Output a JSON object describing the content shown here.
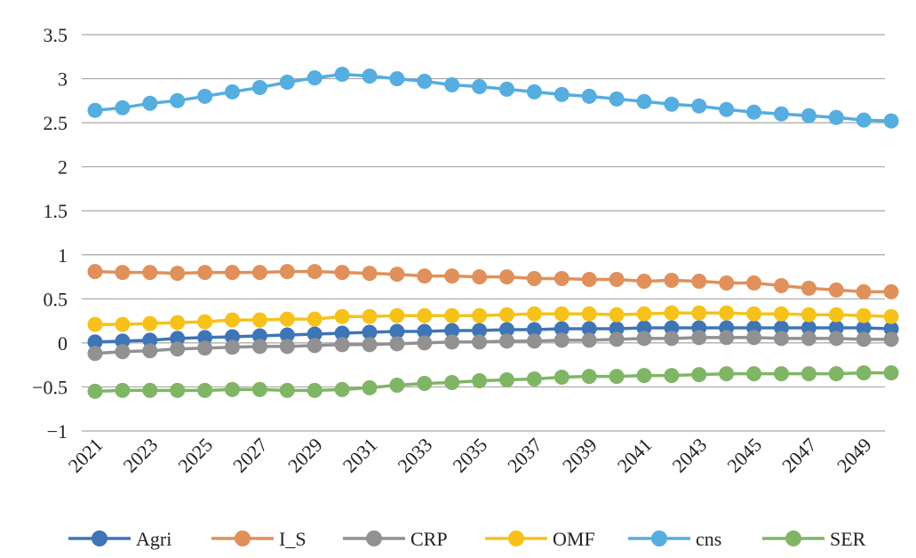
{
  "chart_data": {
    "type": "line",
    "title": "",
    "xlabel": "",
    "ylabel": "",
    "ylim": [
      -1,
      3.5
    ],
    "y_ticks": [
      "3.5",
      "3",
      "2.5",
      "2",
      "1.5",
      "1",
      "0.5",
      "0",
      "−0.5",
      "−1"
    ],
    "y_tick_values": [
      3.5,
      3,
      2.5,
      2,
      1.5,
      1,
      0.5,
      0,
      -0.5,
      -1
    ],
    "x": [
      2021,
      2022,
      2023,
      2024,
      2025,
      2026,
      2027,
      2028,
      2029,
      2030,
      2031,
      2032,
      2033,
      2034,
      2035,
      2036,
      2037,
      2038,
      2039,
      2040,
      2041,
      2042,
      2043,
      2044,
      2045,
      2046,
      2047,
      2048,
      2049,
      2050
    ],
    "x_tick_labels": [
      "2021",
      "2023",
      "2025",
      "2027",
      "2029",
      "2031",
      "2033",
      "2035",
      "2037",
      "2039",
      "2041",
      "2043",
      "2045",
      "2047",
      "2049"
    ],
    "grid": true,
    "legend_position": "bottom",
    "series": [
      {
        "name": "Agri",
        "color": "#3e75b6",
        "values": [
          0.01,
          0.02,
          0.03,
          0.05,
          0.06,
          0.07,
          0.08,
          0.09,
          0.1,
          0.11,
          0.12,
          0.13,
          0.13,
          0.14,
          0.14,
          0.15,
          0.15,
          0.16,
          0.16,
          0.16,
          0.17,
          0.17,
          0.17,
          0.17,
          0.17,
          0.17,
          0.17,
          0.17,
          0.17,
          0.16
        ]
      },
      {
        "name": "I_S",
        "color": "#e0905a",
        "values": [
          0.81,
          0.8,
          0.8,
          0.79,
          0.8,
          0.8,
          0.8,
          0.81,
          0.81,
          0.8,
          0.79,
          0.78,
          0.76,
          0.76,
          0.75,
          0.75,
          0.73,
          0.73,
          0.72,
          0.72,
          0.7,
          0.71,
          0.7,
          0.68,
          0.68,
          0.65,
          0.62,
          0.6,
          0.58,
          0.58
        ]
      },
      {
        "name": "CRP",
        "color": "#919191",
        "values": [
          -0.12,
          -0.1,
          -0.09,
          -0.07,
          -0.06,
          -0.05,
          -0.04,
          -0.04,
          -0.03,
          -0.02,
          -0.02,
          -0.01,
          0.0,
          0.01,
          0.01,
          0.02,
          0.02,
          0.03,
          0.03,
          0.04,
          0.05,
          0.05,
          0.06,
          0.06,
          0.06,
          0.05,
          0.05,
          0.05,
          0.04,
          0.04
        ]
      },
      {
        "name": "OMF",
        "color": "#f6c21a",
        "values": [
          0.21,
          0.21,
          0.22,
          0.23,
          0.24,
          0.26,
          0.26,
          0.27,
          0.27,
          0.3,
          0.3,
          0.31,
          0.31,
          0.31,
          0.31,
          0.32,
          0.33,
          0.33,
          0.33,
          0.32,
          0.33,
          0.34,
          0.34,
          0.34,
          0.33,
          0.33,
          0.32,
          0.32,
          0.31,
          0.3
        ]
      },
      {
        "name": "cns",
        "color": "#55ade0",
        "values": [
          2.64,
          2.67,
          2.72,
          2.75,
          2.8,
          2.85,
          2.9,
          2.96,
          3.01,
          3.05,
          3.03,
          3.0,
          2.97,
          2.93,
          2.91,
          2.88,
          2.85,
          2.82,
          2.8,
          2.77,
          2.74,
          2.71,
          2.69,
          2.65,
          2.62,
          2.6,
          2.58,
          2.56,
          2.53,
          2.52
        ]
      },
      {
        "name": "SER",
        "color": "#80b566",
        "values": [
          -0.55,
          -0.54,
          -0.54,
          -0.54,
          -0.54,
          -0.53,
          -0.53,
          -0.54,
          -0.54,
          -0.53,
          -0.51,
          -0.48,
          -0.46,
          -0.45,
          -0.43,
          -0.42,
          -0.41,
          -0.39,
          -0.38,
          -0.38,
          -0.37,
          -0.37,
          -0.36,
          -0.35,
          -0.35,
          -0.35,
          -0.35,
          -0.35,
          -0.34,
          -0.34
        ]
      }
    ]
  }
}
